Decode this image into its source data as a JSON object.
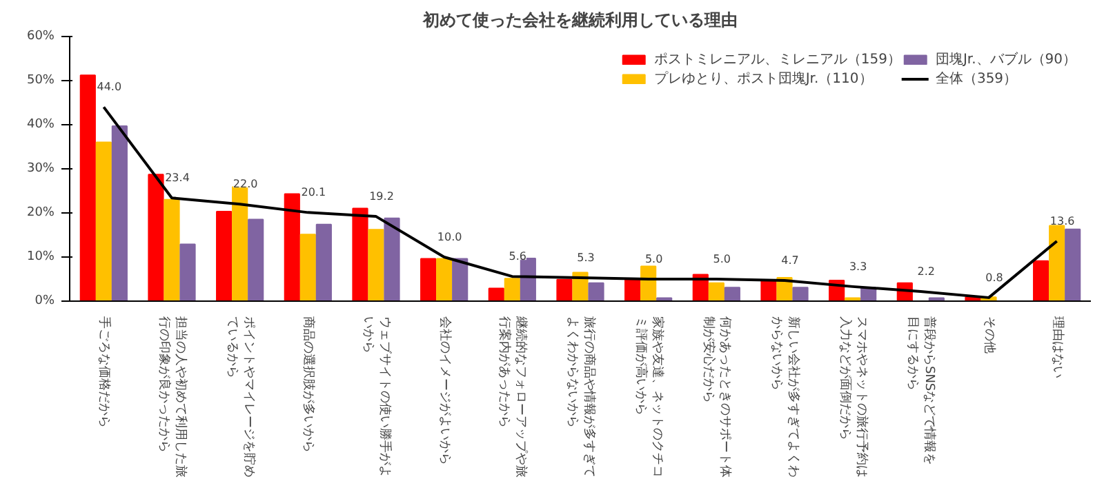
{
  "chart_data": {
    "type": "bar",
    "title": "初めて使った会社を継続利用している理由",
    "categories": [
      "手ごろな価格だから",
      "担当の人や初めて利用した旅行の印象が良かったから",
      "ポイントやマイレージを貯めているから",
      "商品の選択肢が多いから",
      "ウェブサイトの使い勝手がよいから",
      "会社のイメージがよいから",
      "継続的なフォローアップや旅行案内があったから",
      "旅行の商品や情報が多すぎてよくわからないから",
      "家族や友達、ネットのクチコミ評価が高いから",
      "何かあったときのサポート体制が安心だから",
      "新しい会社が多すぎてよくわからないから",
      "スマホやネットの旅行予約は入力などが面倒だから",
      "普段からSNSなどで情報を目にするから",
      "その他",
      "理由はない"
    ],
    "series": [
      {
        "name": "ポストミレニアル、ミレニアル（159）",
        "color": "#ff0000",
        "values": [
          51.2,
          28.7,
          20.3,
          24.3,
          21.0,
          9.6,
          2.9,
          4.9,
          4.9,
          6.0,
          4.6,
          4.7,
          4.1,
          0.9,
          9.1
        ]
      },
      {
        "name": "プレゆとり、ポスト団塊Jr.（110）",
        "color": "#ffc000",
        "values": [
          36.0,
          23.0,
          25.9,
          15.1,
          16.2,
          9.6,
          5.1,
          6.5,
          7.9,
          4.1,
          5.3,
          0.7,
          0.0,
          0.9,
          17.1
        ]
      },
      {
        "name": "団塊Jr.、バブル（90）",
        "color": "#8064a2",
        "values": [
          39.7,
          12.9,
          18.5,
          17.4,
          18.8,
          9.6,
          9.7,
          4.1,
          0.7,
          3.1,
          3.1,
          3.1,
          0.7,
          0.0,
          16.3
        ]
      },
      {
        "name": "全体（359）",
        "type": "line",
        "color": "#000000",
        "values": [
          44.0,
          23.4,
          22.0,
          20.1,
          19.2,
          10.0,
          5.6,
          5.3,
          5.0,
          5.0,
          4.7,
          3.3,
          2.2,
          0.8,
          13.6
        ],
        "value_labels": [
          "44.0",
          "23.4",
          "22.0",
          "20.1",
          "19.2",
          "10.0",
          "5.6",
          "5.3",
          "5.0",
          "5.0",
          "4.7",
          "3.3",
          "2.2",
          "0.8",
          "13.6"
        ]
      }
    ],
    "ylim": [
      0,
      60
    ],
    "yticks": [
      {
        "value": 0,
        "label": "0%"
      },
      {
        "value": 10,
        "label": "10%"
      },
      {
        "value": 20,
        "label": "20%"
      },
      {
        "value": 30,
        "label": "30%"
      },
      {
        "value": 40,
        "label": "40%"
      },
      {
        "value": 50,
        "label": "50%"
      },
      {
        "value": 60,
        "label": "60%"
      }
    ],
    "grid": false,
    "legend": "top right",
    "marker": "none",
    "line_style": "solid"
  }
}
